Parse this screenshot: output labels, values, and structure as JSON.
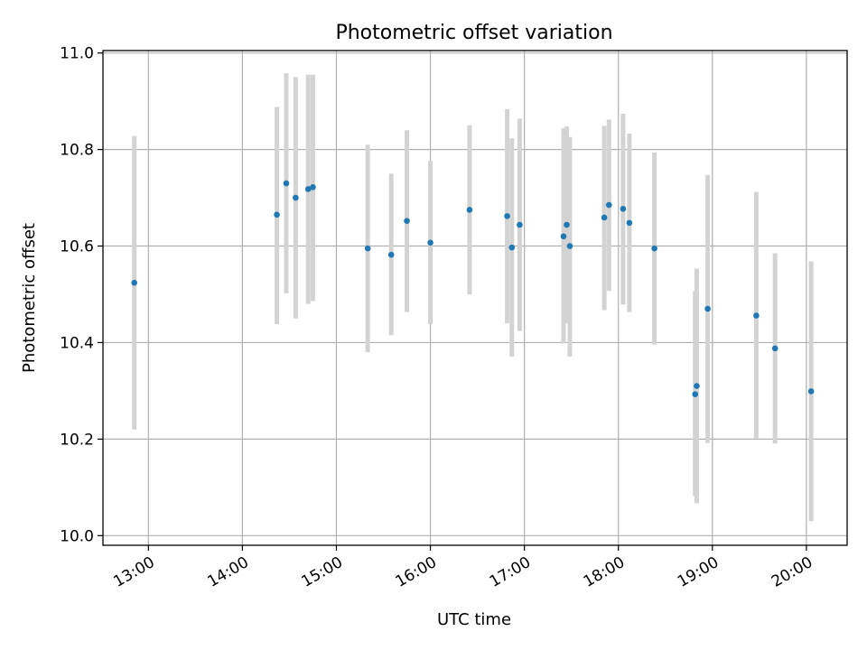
{
  "chart_data": {
    "type": "scatter",
    "title": "Photometric offset variation",
    "xlabel": "UTC time",
    "ylabel": "Photometric offset",
    "xlim": [
      "12:31",
      "20:26"
    ],
    "ylim": [
      9.98,
      11.005
    ],
    "x_ticks": [
      "13:00",
      "14:00",
      "15:00",
      "16:00",
      "17:00",
      "18:00",
      "19:00",
      "20:00"
    ],
    "y_ticks": [
      "10.0",
      "10.2",
      "10.4",
      "10.6",
      "10.8",
      "11.0"
    ],
    "grid": true,
    "colors": {
      "points": "#1f77b4",
      "error_bars": "#d3d3d3",
      "grid": "#b0b0b0"
    },
    "series": [
      {
        "points": [
          {
            "x": "12:51",
            "y": 10.524,
            "ylow": 10.22,
            "yhigh": 10.828
          },
          {
            "x": "14:22",
            "y": 10.665,
            "ylow": 10.438,
            "yhigh": 10.888
          },
          {
            "x": "14:28",
            "y": 10.73,
            "ylow": 10.502,
            "yhigh": 10.958
          },
          {
            "x": "14:34",
            "y": 10.7,
            "ylow": 10.45,
            "yhigh": 10.95
          },
          {
            "x": "14:42",
            "y": 10.718,
            "ylow": 10.48,
            "yhigh": 10.955
          },
          {
            "x": "14:45",
            "y": 10.722,
            "ylow": 10.486,
            "yhigh": 10.955
          },
          {
            "x": "15:20",
            "y": 10.595,
            "ylow": 10.38,
            "yhigh": 10.81
          },
          {
            "x": "15:35",
            "y": 10.582,
            "ylow": 10.415,
            "yhigh": 10.75
          },
          {
            "x": "15:45",
            "y": 10.652,
            "ylow": 10.463,
            "yhigh": 10.84
          },
          {
            "x": "16:00",
            "y": 10.607,
            "ylow": 10.438,
            "yhigh": 10.776
          },
          {
            "x": "16:25",
            "y": 10.675,
            "ylow": 10.5,
            "yhigh": 10.85
          },
          {
            "x": "16:49",
            "y": 10.662,
            "ylow": 10.44,
            "yhigh": 10.884
          },
          {
            "x": "16:52",
            "y": 10.597,
            "ylow": 10.371,
            "yhigh": 10.823
          },
          {
            "x": "16:57",
            "y": 10.644,
            "ylow": 10.424,
            "yhigh": 10.864
          },
          {
            "x": "17:25",
            "y": 10.62,
            "ylow": 10.398,
            "yhigh": 10.844
          },
          {
            "x": "17:27",
            "y": 10.644,
            "ylow": 10.44,
            "yhigh": 10.848
          },
          {
            "x": "17:29",
            "y": 10.6,
            "ylow": 10.371,
            "yhigh": 10.826
          },
          {
            "x": "17:51",
            "y": 10.659,
            "ylow": 10.467,
            "yhigh": 10.849
          },
          {
            "x": "17:54",
            "y": 10.685,
            "ylow": 10.507,
            "yhigh": 10.862
          },
          {
            "x": "18:03",
            "y": 10.677,
            "ylow": 10.479,
            "yhigh": 10.874
          },
          {
            "x": "18:07",
            "y": 10.648,
            "ylow": 10.463,
            "yhigh": 10.833
          },
          {
            "x": "18:23",
            "y": 10.595,
            "ylow": 10.396,
            "yhigh": 10.794
          },
          {
            "x": "18:49",
            "y": 10.293,
            "ylow": 10.082,
            "yhigh": 10.507
          },
          {
            "x": "18:50",
            "y": 10.31,
            "ylow": 10.067,
            "yhigh": 10.553
          },
          {
            "x": "18:57",
            "y": 10.47,
            "ylow": 10.192,
            "yhigh": 10.747
          },
          {
            "x": "19:28",
            "y": 10.456,
            "ylow": 10.201,
            "yhigh": 10.712
          },
          {
            "x": "19:40",
            "y": 10.388,
            "ylow": 10.191,
            "yhigh": 10.585
          },
          {
            "x": "20:03",
            "y": 10.299,
            "ylow": 10.03,
            "yhigh": 10.568
          }
        ]
      }
    ]
  }
}
